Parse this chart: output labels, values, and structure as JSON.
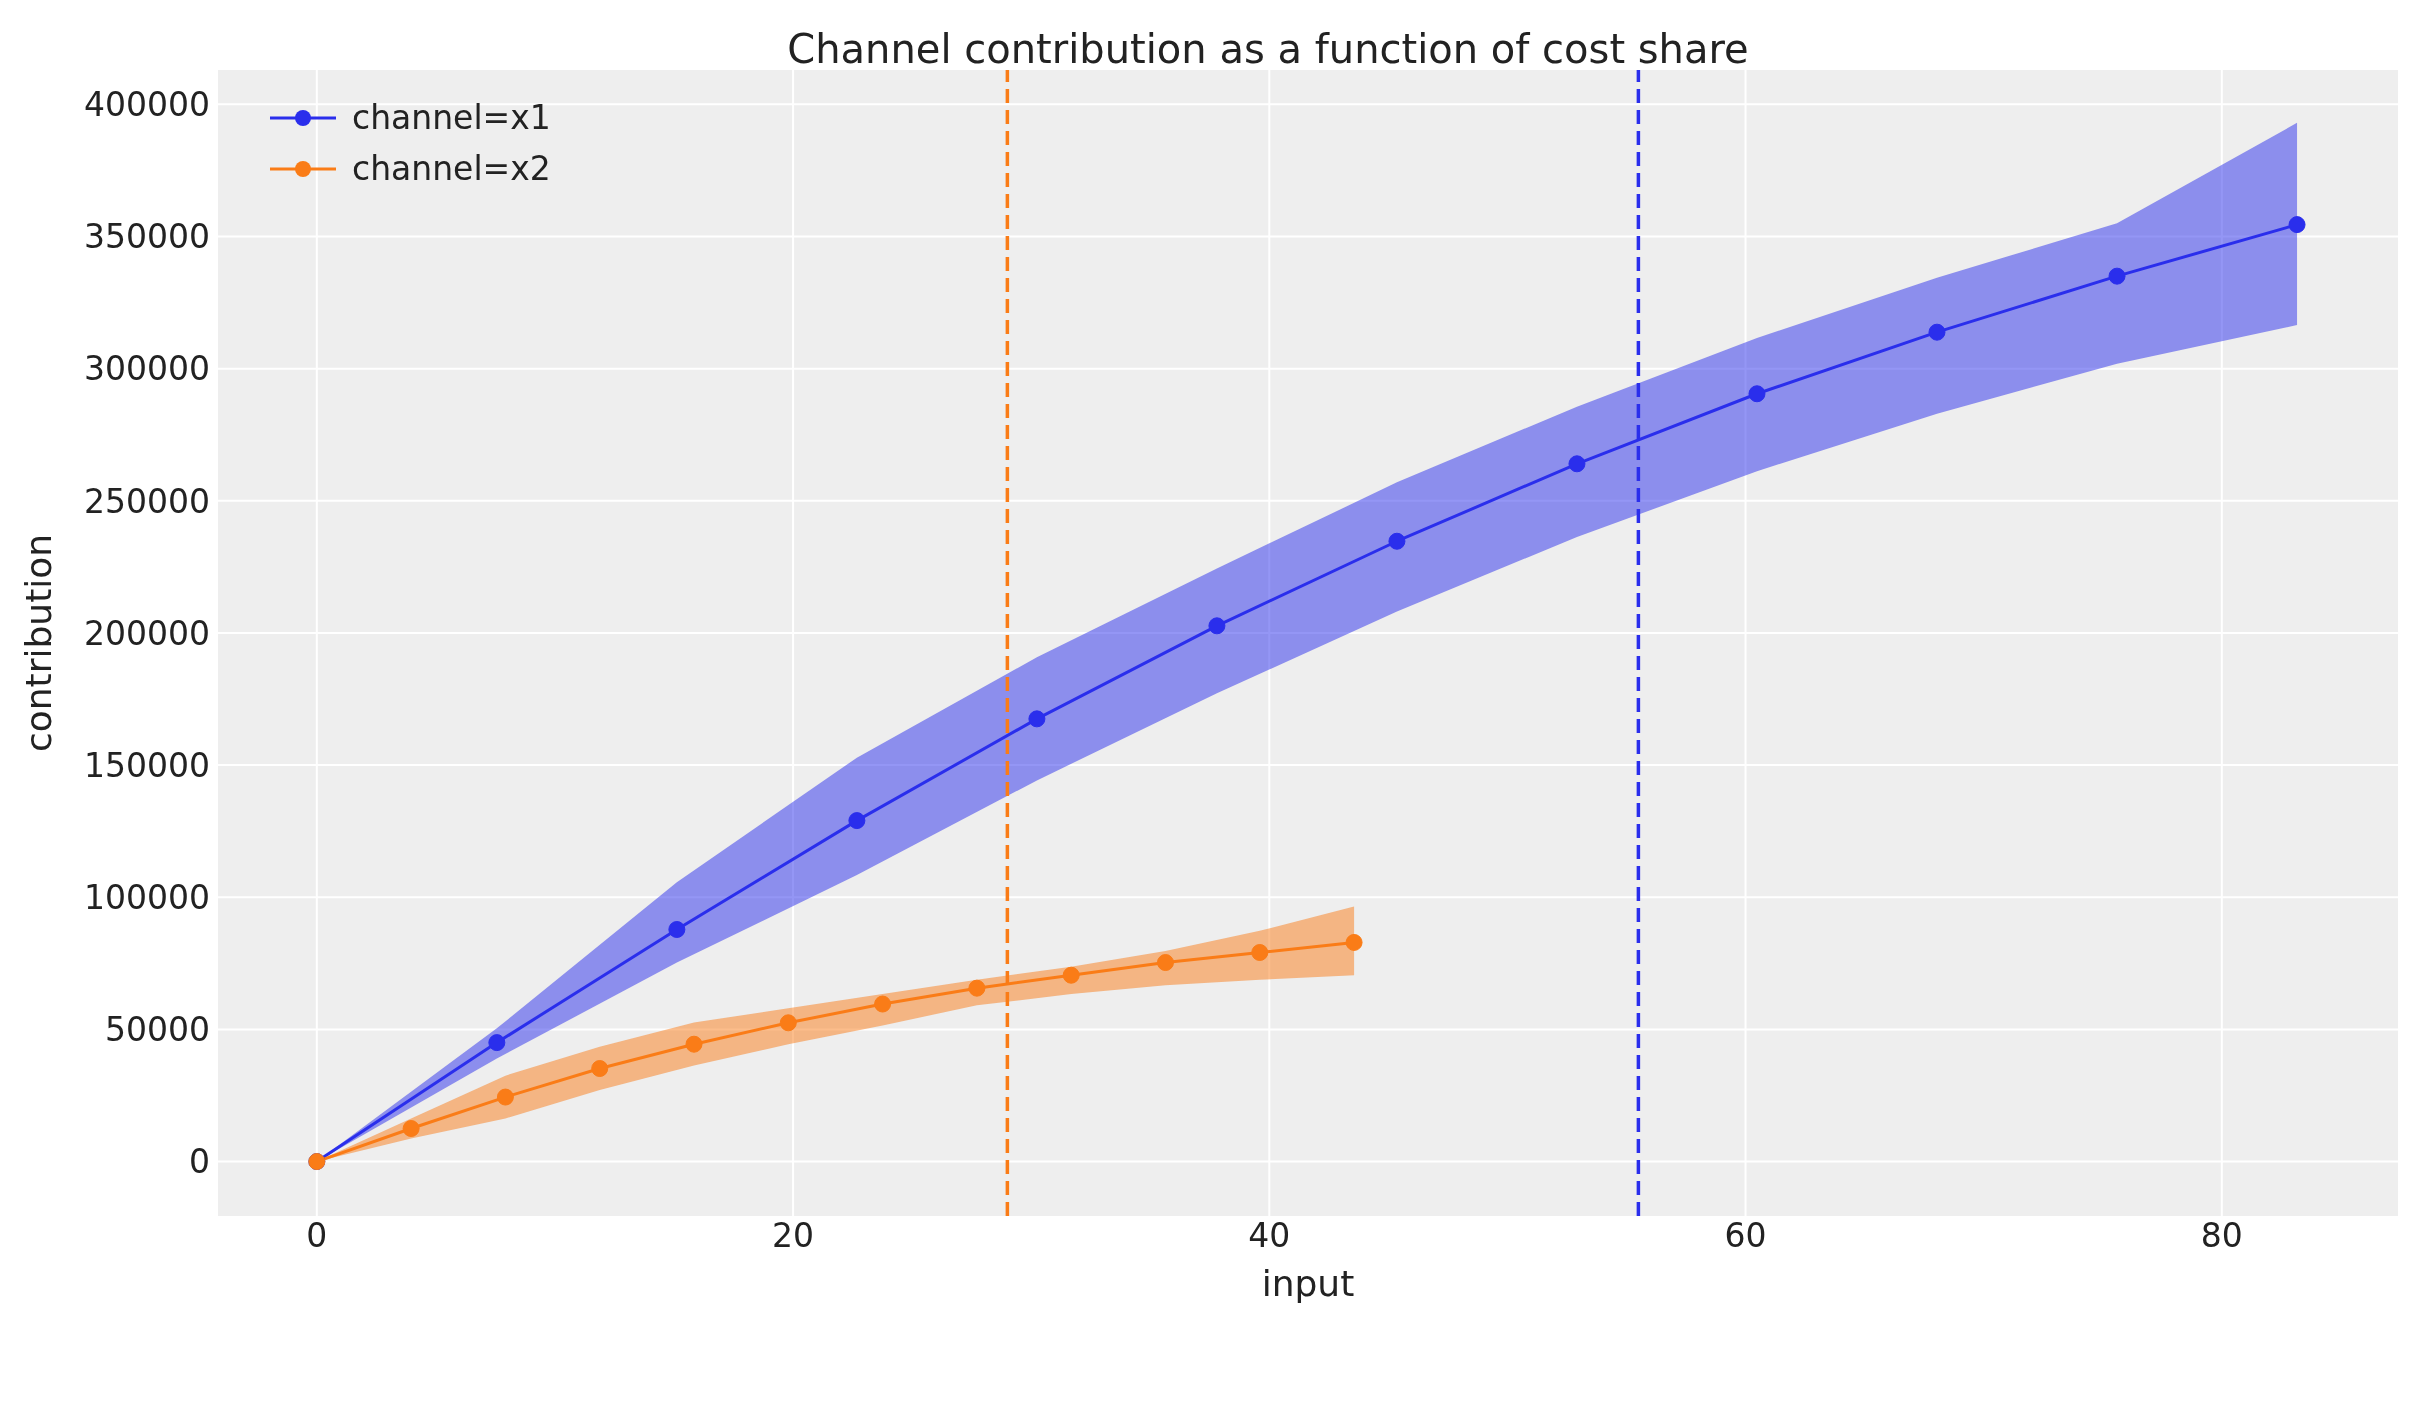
{
  "chart_data": {
    "type": "line",
    "title": "Channel contribution as a function of cost share",
    "xlabel": "input",
    "ylabel": "contribution",
    "xlim": [
      -4.15,
      87.4
    ],
    "xticks": [
      0,
      20,
      40,
      60,
      80
    ],
    "ylim": [
      -20600,
      413000
    ],
    "yticks": [
      0,
      50000,
      100000,
      150000,
      200000,
      250000,
      300000,
      350000,
      400000
    ],
    "grid": true,
    "legend": "top left",
    "marker": "circle",
    "line_style": "solid",
    "series": [
      {
        "name": "channel=x1",
        "color": "#2a2eec",
        "x": [
          0,
          7.56,
          15.12,
          22.68,
          30.24,
          37.8,
          45.36,
          52.92,
          60.48,
          68.04,
          75.6,
          83.16
        ],
        "values": [
          0,
          45000,
          87800,
          129000,
          167500,
          202700,
          234700,
          264000,
          290500,
          313800,
          335000,
          354500
        ],
        "lower": [
          0,
          39000,
          75300,
          108400,
          144200,
          177200,
          208100,
          236300,
          261200,
          282900,
          301900,
          316500
        ],
        "upper": [
          0,
          50400,
          105700,
          152800,
          190800,
          224400,
          257000,
          285600,
          311600,
          334400,
          355000,
          393000
        ]
      },
      {
        "name": "channel=x2",
        "color": "#fa7c17",
        "x": [
          0,
          3.96,
          7.92,
          11.88,
          15.84,
          19.8,
          23.76,
          27.72,
          31.68,
          35.64,
          39.6,
          43.56
        ],
        "values": [
          0,
          12500,
          24400,
          35200,
          44400,
          52500,
          59600,
          65600,
          70500,
          75300,
          79100,
          82900
        ],
        "lower": [
          0,
          8700,
          16300,
          27100,
          36300,
          44400,
          51500,
          59100,
          63400,
          66700,
          68800,
          70500
        ],
        "upper": [
          0,
          16300,
          32500,
          43400,
          52600,
          58000,
          63400,
          68800,
          73700,
          79700,
          87300,
          96500
        ]
      }
    ],
    "ref_lines": [
      {
        "axis": "x",
        "value": 29.0,
        "color": "#fa7c17",
        "line_style": "dashed"
      },
      {
        "axis": "x",
        "value": 55.5,
        "color": "#2a2eec",
        "line_style": "dashed"
      }
    ]
  }
}
